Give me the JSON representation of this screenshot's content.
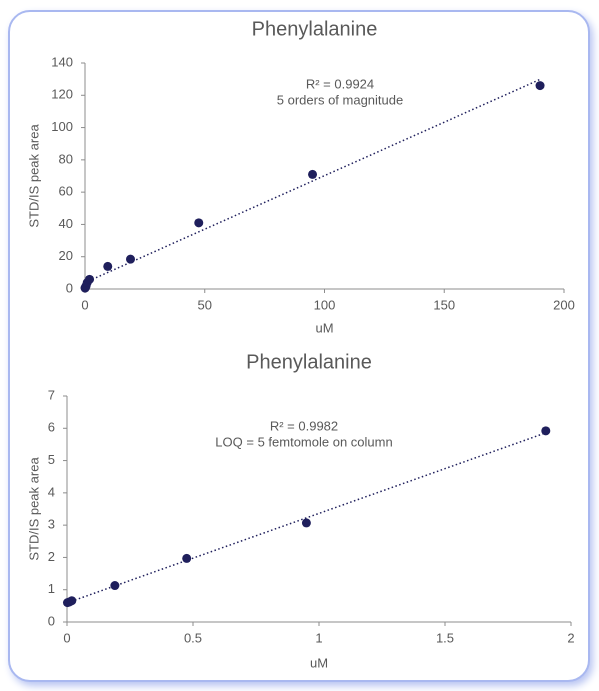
{
  "chart_data": [
    {
      "type": "scatter",
      "title": "Phenylalanine",
      "x_label": "uM",
      "y_label": "STD/IS peak area",
      "annotations": [
        "R² = 0.9924",
        "5 orders of magnitude"
      ],
      "color": "#1f1f5c",
      "trendline": true,
      "x": [
        0.019,
        0.095,
        0.19,
        0.475,
        0.95,
        1.9,
        9.5,
        19,
        47.5,
        95,
        190
      ],
      "values": [
        0.6,
        0.7,
        1.1,
        2,
        4,
        6,
        14,
        18.5,
        41,
        71,
        126
      ],
      "xlim": [
        0,
        200
      ],
      "xticks": [
        0,
        50,
        100,
        150,
        200
      ],
      "ylim": [
        0,
        140
      ],
      "yticks": [
        0,
        20,
        40,
        60,
        80,
        100,
        120,
        140
      ]
    },
    {
      "type": "scatter",
      "title": "Phenylalanine",
      "x_label": "uM",
      "y_label": "STD/IS peak area",
      "annotations": [
        "R² = 0.9982",
        "LOQ = 5 femtomole on column"
      ],
      "color": "#1f1f5c",
      "trendline": true,
      "x": [
        0.0019,
        0.0095,
        0.019,
        0.19,
        0.475,
        0.95,
        1.9
      ],
      "values": [
        0.6,
        0.62,
        0.66,
        1.13,
        1.97,
        3.07,
        5.92
      ],
      "xlim": [
        0,
        2
      ],
      "xticks": [
        0,
        0.5,
        1,
        1.5,
        2
      ],
      "ylim": [
        0,
        7
      ],
      "yticks": [
        0,
        1,
        2,
        3,
        4,
        5,
        6,
        7
      ]
    }
  ]
}
